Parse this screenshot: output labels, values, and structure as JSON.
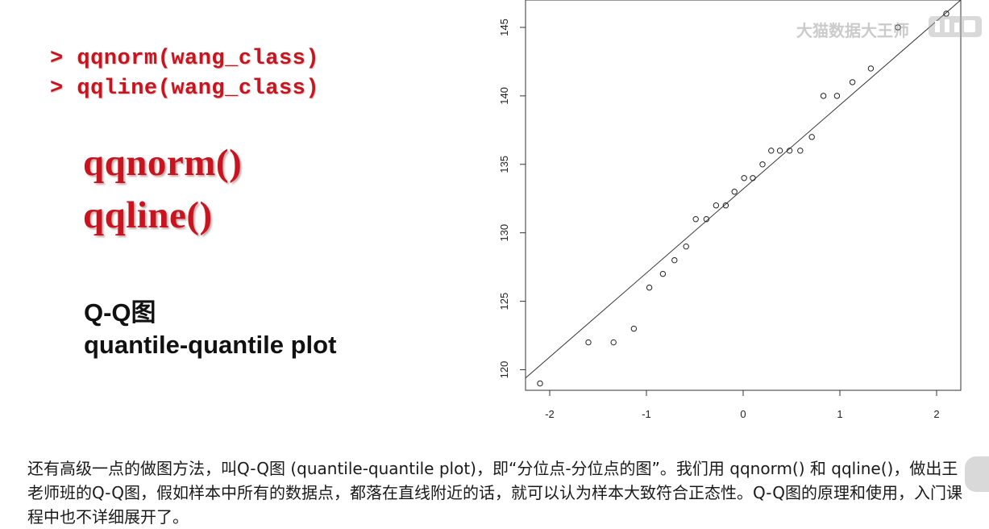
{
  "slide": {
    "code_lines": [
      "> qqnorm(wang_class)",
      "> qqline(wang_class)"
    ],
    "functions": [
      "qqnorm()",
      "qqline()"
    ],
    "qq_title": "Q-Q图",
    "qq_subtitle": "quantile-quantile plot",
    "caption": "还有高级一点的做图方法，叫Q-Q图 (quantile-quantile plot)，即“分位点-分位点的图”。我们用 qqnorm() 和 qqline()，做出王老师班的Q-Q图，假如样本中所有的数据点，都落在直线附近的话，就可以认为样本大致符合正态性。Q-Q图的原理和使用，入门课程中也不详细展开了。",
    "watermark": "大猫数据大王师",
    "colors": {
      "code_red": "#c8141e",
      "text": "#111111"
    }
  },
  "chart_data": {
    "type": "scatter",
    "title": "",
    "xlabel": "",
    "ylabel": "",
    "xlim": [
      -2.25,
      2.25
    ],
    "ylim": [
      118.5,
      147
    ],
    "xticks": [
      -2,
      -1,
      0,
      1,
      2
    ],
    "yticks": [
      120,
      125,
      130,
      135,
      140,
      145
    ],
    "grid": false,
    "points": [
      {
        "x": -2.1,
        "y": 119
      },
      {
        "x": -1.6,
        "y": 122
      },
      {
        "x": -1.34,
        "y": 122
      },
      {
        "x": -1.13,
        "y": 123
      },
      {
        "x": -0.97,
        "y": 126
      },
      {
        "x": -0.83,
        "y": 127
      },
      {
        "x": -0.71,
        "y": 128
      },
      {
        "x": -0.59,
        "y": 129
      },
      {
        "x": -0.49,
        "y": 131
      },
      {
        "x": -0.38,
        "y": 131
      },
      {
        "x": -0.28,
        "y": 132
      },
      {
        "x": -0.18,
        "y": 132
      },
      {
        "x": -0.09,
        "y": 133
      },
      {
        "x": 0.01,
        "y": 134
      },
      {
        "x": 0.1,
        "y": 134
      },
      {
        "x": 0.2,
        "y": 135
      },
      {
        "x": 0.29,
        "y": 136
      },
      {
        "x": 0.38,
        "y": 136
      },
      {
        "x": 0.48,
        "y": 136
      },
      {
        "x": 0.59,
        "y": 136
      },
      {
        "x": 0.71,
        "y": 137
      },
      {
        "x": 0.83,
        "y": 140
      },
      {
        "x": 0.97,
        "y": 140
      },
      {
        "x": 1.13,
        "y": 141
      },
      {
        "x": 1.32,
        "y": 142
      },
      {
        "x": 1.6,
        "y": 145
      },
      {
        "x": 2.1,
        "y": 146
      }
    ],
    "reference_line": {
      "x": [
        -2.25,
        2.25
      ],
      "y": [
        119.4,
        147.0
      ]
    }
  }
}
